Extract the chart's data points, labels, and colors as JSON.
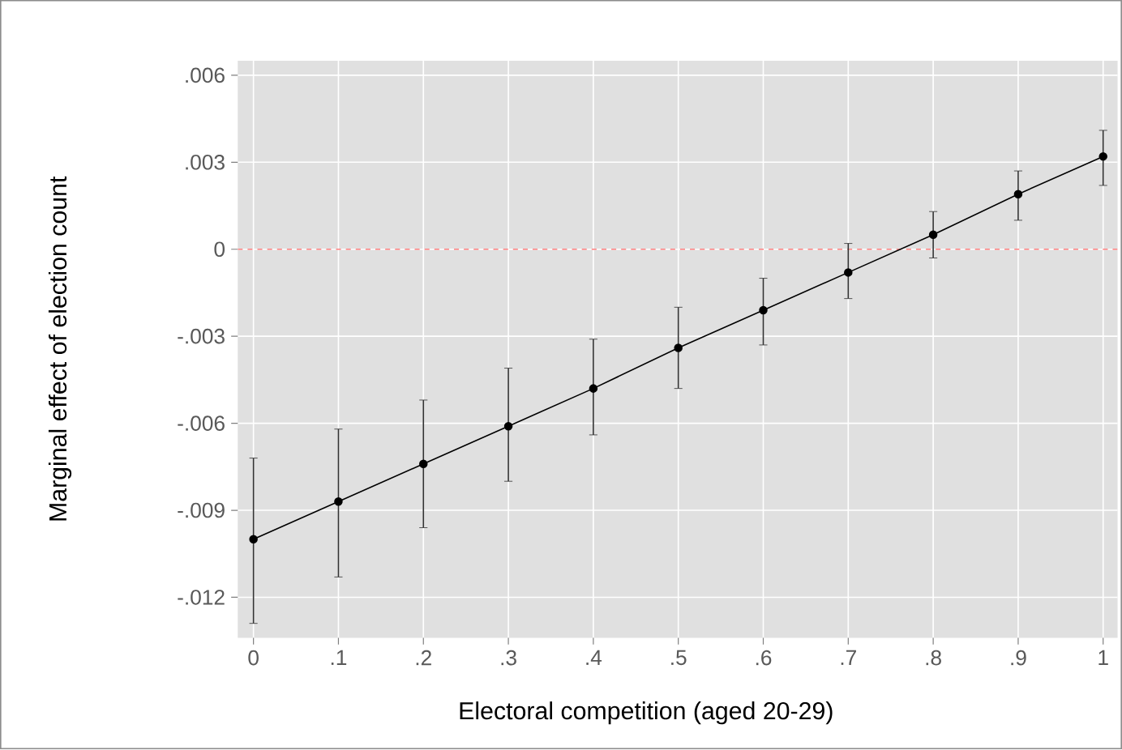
{
  "chart_data": {
    "type": "line",
    "xlabel": "Electoral competition  (aged 20-29)",
    "ylabel": "Marginal effect of election count",
    "x": [
      0,
      0.1,
      0.2,
      0.3,
      0.4,
      0.5,
      0.6,
      0.7,
      0.8,
      0.9,
      1
    ],
    "series": [
      {
        "color": "#000000",
        "values": [
          -0.01,
          -0.0087,
          -0.0074,
          -0.0061,
          -0.0048,
          -0.0034,
          -0.0021,
          -0.0008,
          0.0005,
          0.0019,
          0.0032
        ],
        "errors": [
          [
            -0.0129,
            -0.0072
          ],
          [
            -0.0113,
            -0.0062
          ],
          [
            -0.0096,
            -0.0052
          ],
          [
            -0.008,
            -0.0041
          ],
          [
            -0.0064,
            -0.0031
          ],
          [
            -0.0048,
            -0.002
          ],
          [
            -0.0033,
            -0.001
          ],
          [
            -0.0017,
            0.0002
          ],
          [
            -0.0003,
            0.0013
          ],
          [
            0.001,
            0.0027
          ],
          [
            0.0022,
            0.0041
          ]
        ]
      }
    ],
    "xlim": [
      -0.0185,
      1.017
    ],
    "ylim": [
      -0.0134,
      0.0065
    ],
    "xticks": [
      0,
      {
        "value": 0.1,
        "label": ".1"
      },
      {
        "value": 0.2,
        "label": ".2"
      },
      {
        "value": 0.3,
        "label": ".3"
      },
      {
        "value": 0.4,
        "label": ".4"
      },
      {
        "value": 0.5,
        "label": ".5"
      },
      {
        "value": 0.6,
        "label": ".6"
      },
      {
        "value": 0.7,
        "label": ".7"
      },
      {
        "value": 0.8,
        "label": ".8"
      },
      {
        "value": 0.9,
        "label": ".9"
      },
      1
    ],
    "yticks": [
      {
        "value": -0.012,
        "label": "-.012"
      },
      {
        "value": -0.009,
        "label": "-.009"
      },
      {
        "value": -0.006,
        "label": "-.006"
      },
      {
        "value": -0.003,
        "label": "-.003"
      },
      0,
      {
        "value": 0.003,
        "label": ".003"
      },
      {
        "value": 0.006,
        "label": ".006"
      }
    ],
    "ref_lines": [
      {
        "axis": "y",
        "value": 0,
        "color": "#ff8080",
        "line_style": "dashed"
      }
    ],
    "grid": true,
    "marker": "circle",
    "line_style": "solid"
  }
}
